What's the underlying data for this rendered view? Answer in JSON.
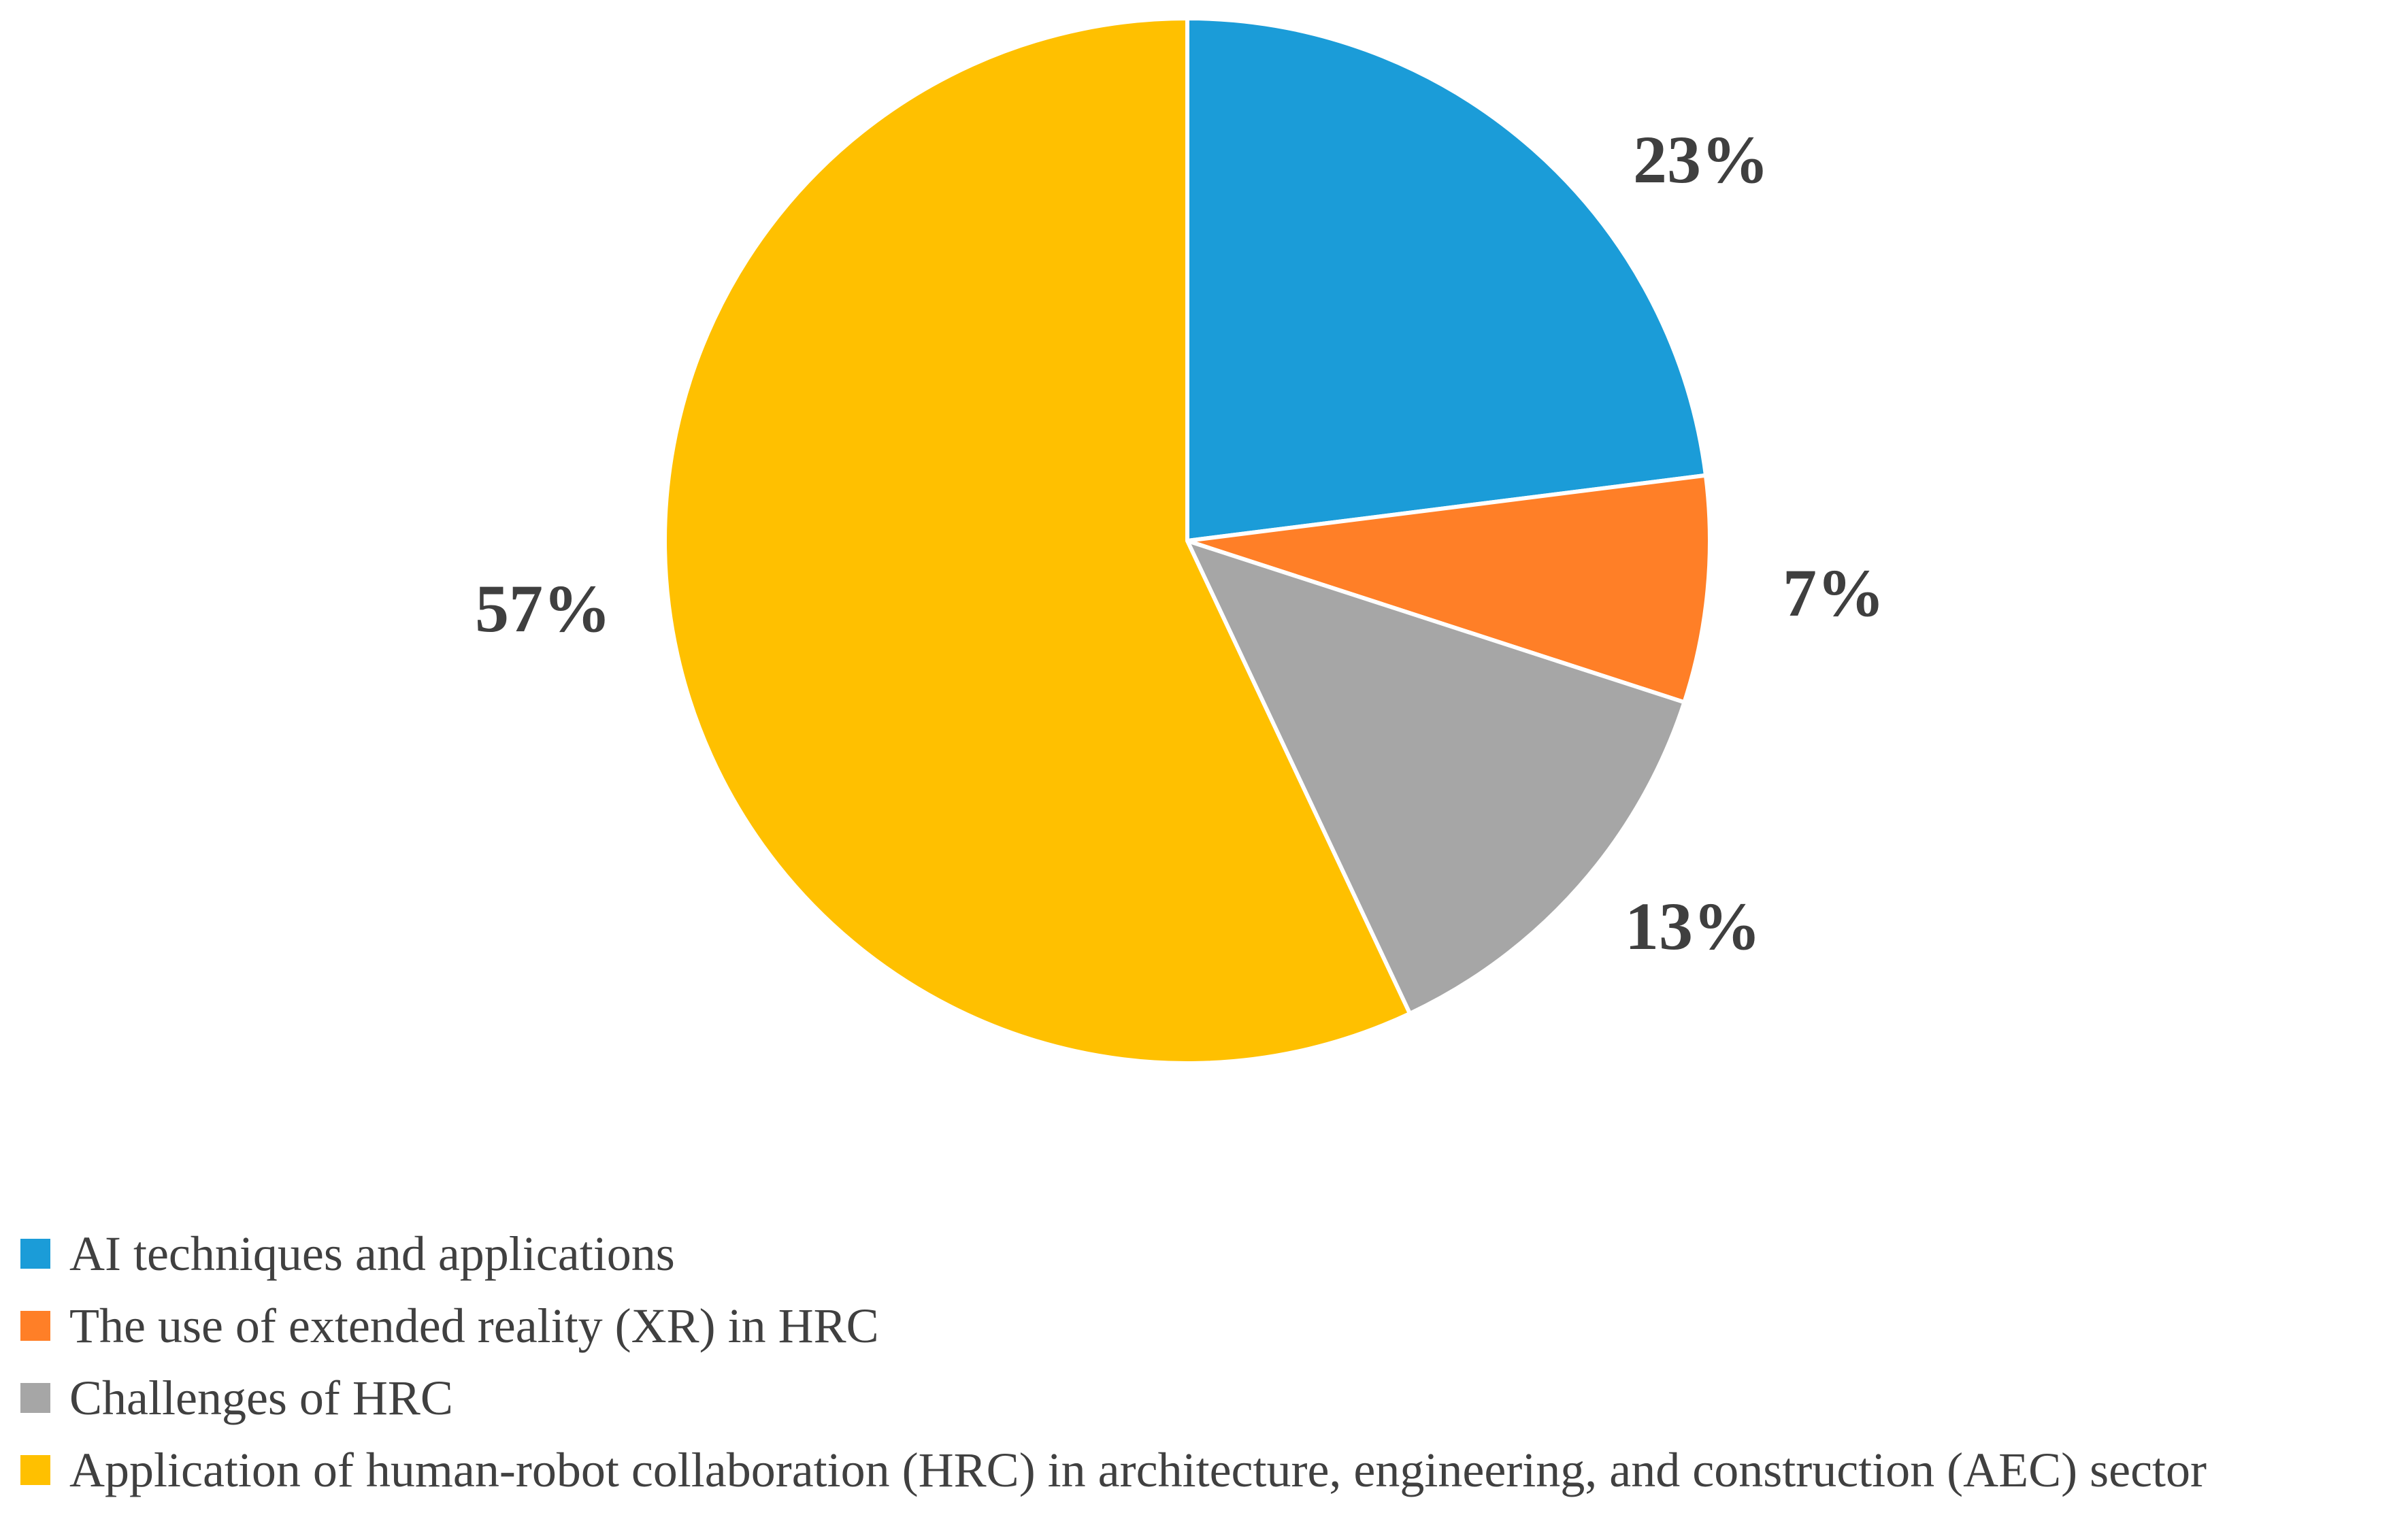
{
  "chart_data": {
    "type": "pie",
    "title": "",
    "slices": [
      {
        "name": "AI techniques and applications",
        "value": 23,
        "label": "23%",
        "color": "#1b9cd8"
      },
      {
        "name": "The use of extended reality (XR) in HRC",
        "value": 7,
        "label": "7%",
        "color": "#ff7f27"
      },
      {
        "name": "Challenges of HRC",
        "value": 13,
        "label": "13%",
        "color": "#a6a6a6"
      },
      {
        "name": "Application of human-robot collaboration (HRC) in architecture, engineering, and construction (AEC) sector",
        "value": 57,
        "label": "57%",
        "color": "#ffc000"
      }
    ],
    "start_angle": "12 o'clock",
    "direction": "clockwise",
    "legend_placement": "bottom-left"
  }
}
